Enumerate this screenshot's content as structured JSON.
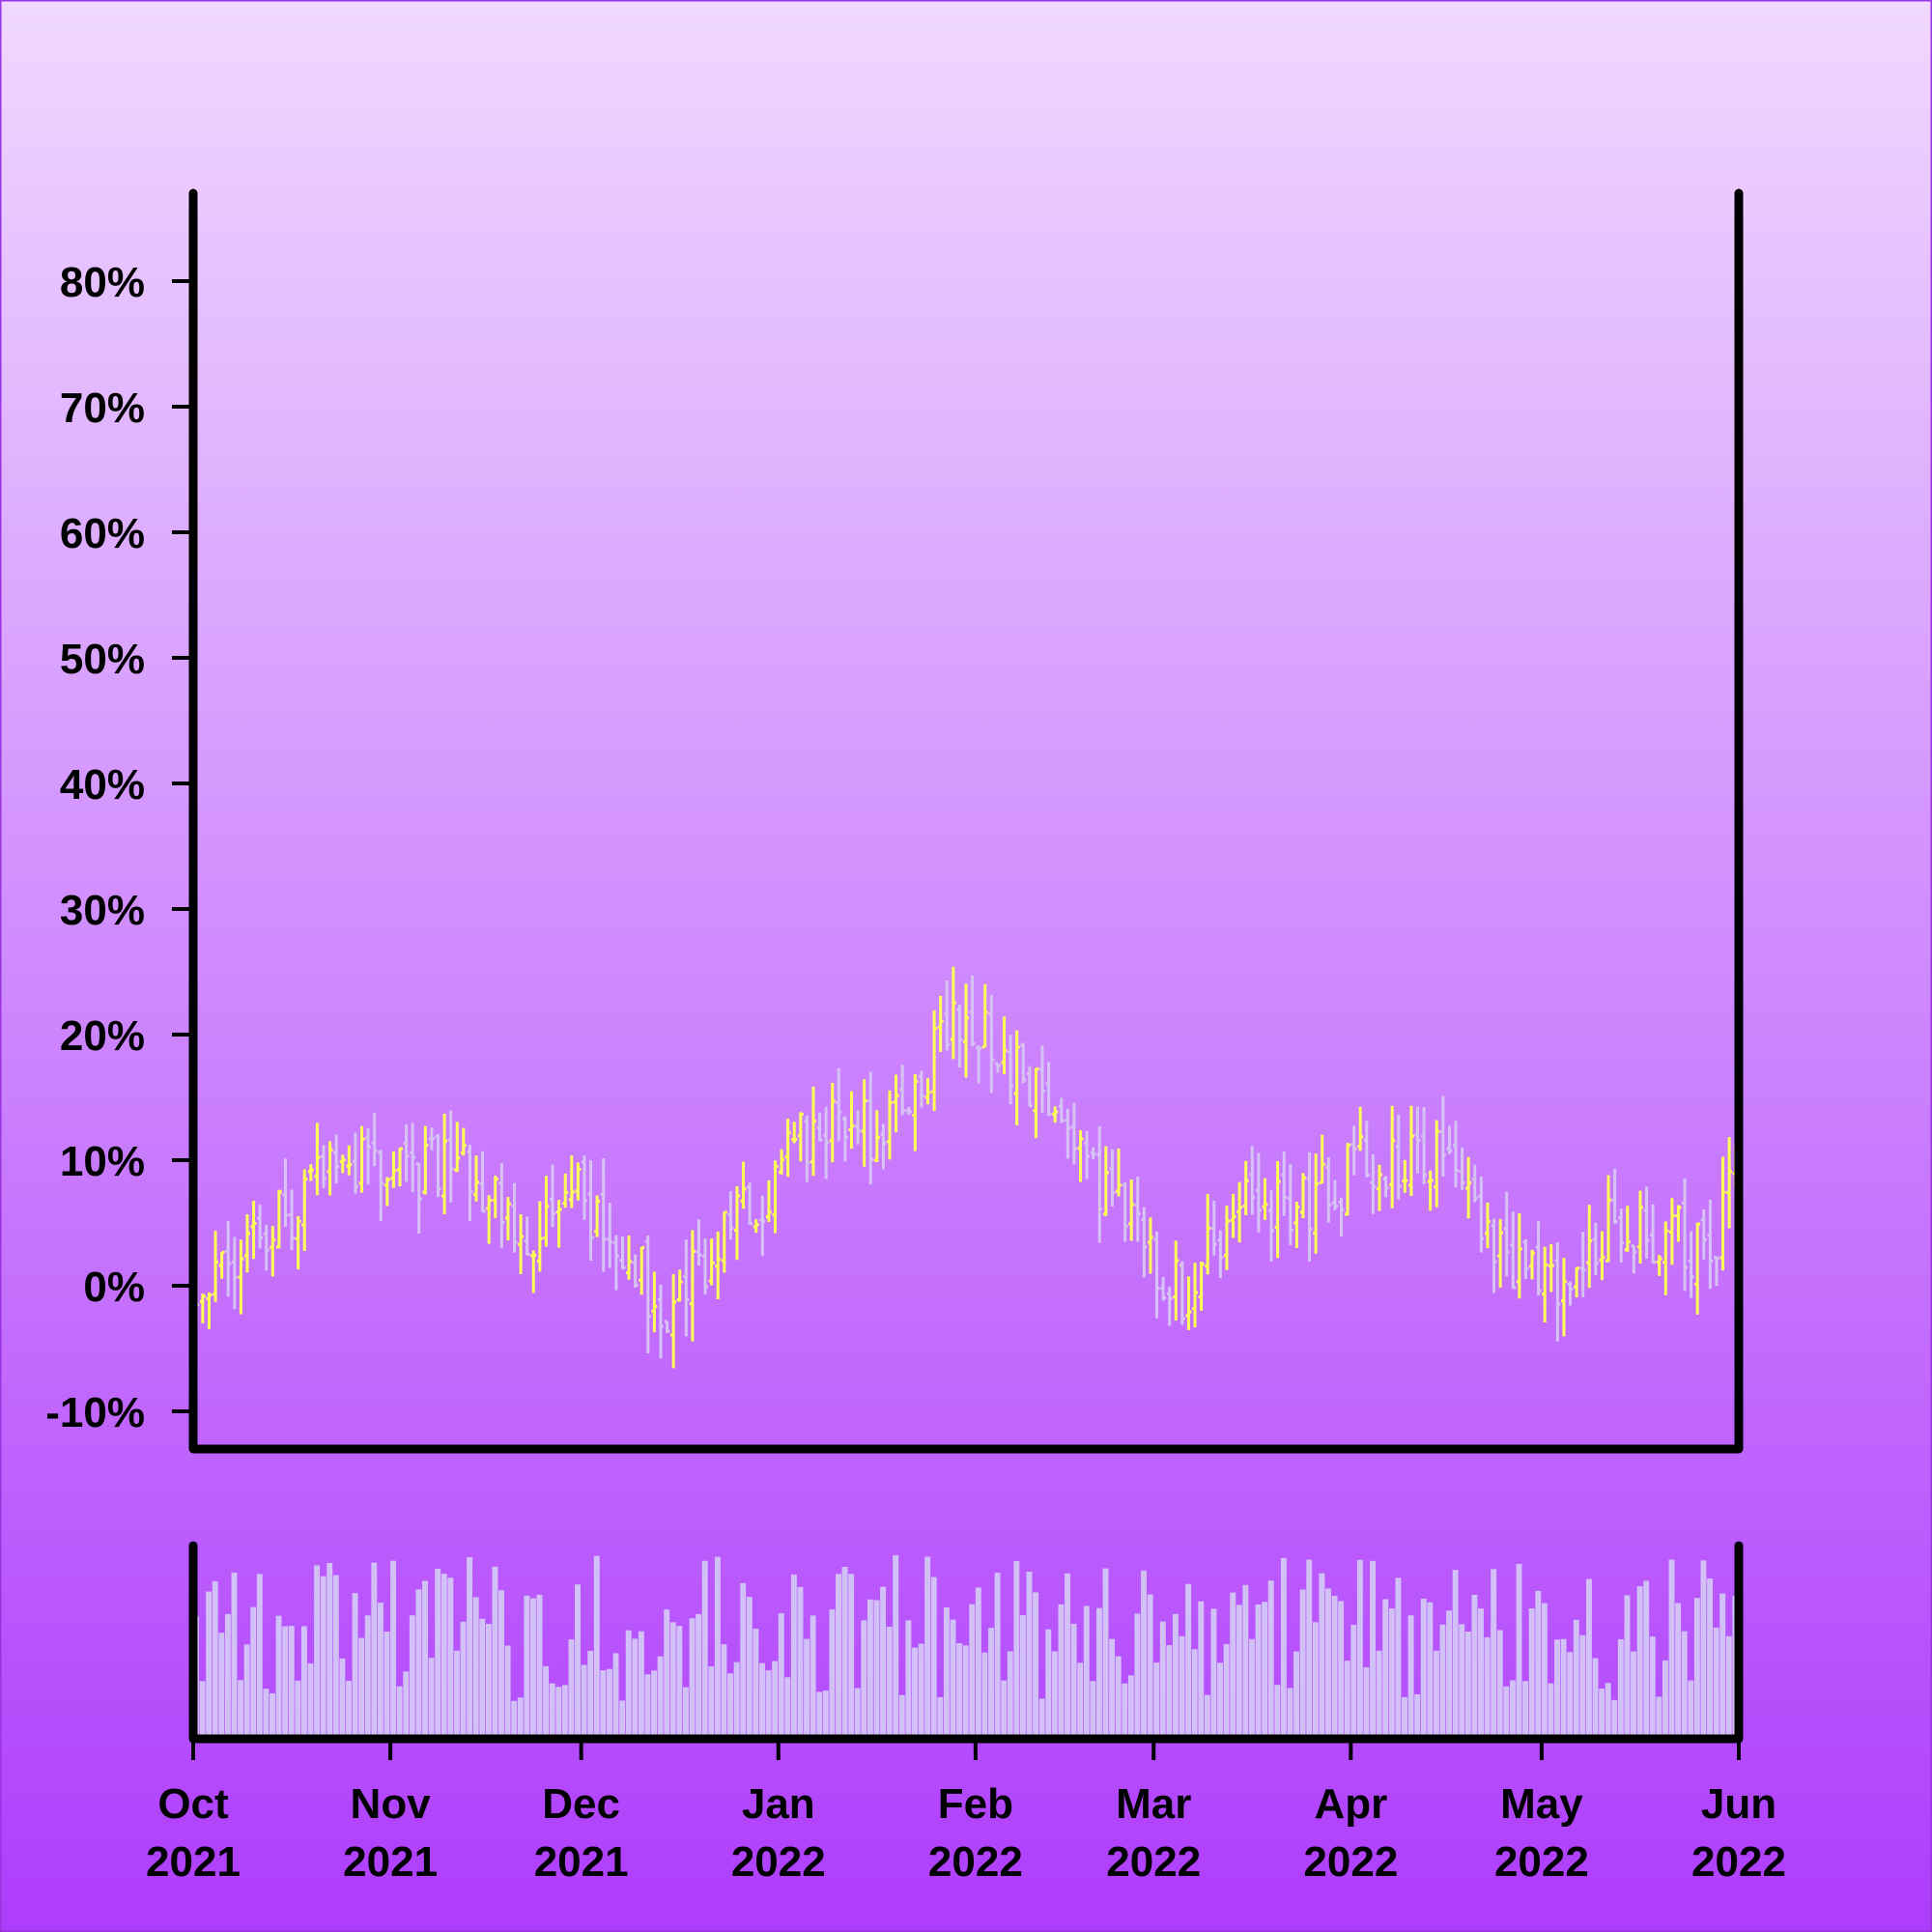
{
  "chart_data": {
    "type": "ohlc",
    "title": "",
    "xlabel": "",
    "ylabel": "",
    "ylim": [
      -13,
      87
    ],
    "xlim": [
      "2021-10-01",
      "2022-06-01"
    ],
    "y_ticks": [
      {
        "value": -10,
        "label": "-10%"
      },
      {
        "value": 0,
        "label": "0%"
      },
      {
        "value": 10,
        "label": "10%"
      },
      {
        "value": 20,
        "label": "20%"
      },
      {
        "value": 30,
        "label": "30%"
      },
      {
        "value": 40,
        "label": "40%"
      },
      {
        "value": 50,
        "label": "50%"
      },
      {
        "value": 60,
        "label": "60%"
      },
      {
        "value": 70,
        "label": "70%"
      },
      {
        "value": 80,
        "label": "80%"
      }
    ],
    "x_ticks": [
      {
        "date": "2021-10-01",
        "month": "Oct",
        "year": "2021"
      },
      {
        "date": "2021-11-01",
        "month": "Nov",
        "year": "2021"
      },
      {
        "date": "2021-12-01",
        "month": "Dec",
        "year": "2021"
      },
      {
        "date": "2022-01-01",
        "month": "Jan",
        "year": "2022"
      },
      {
        "date": "2022-02-01",
        "month": "Feb",
        "year": "2022"
      },
      {
        "date": "2022-03-01",
        "month": "Mar",
        "year": "2022"
      },
      {
        "date": "2022-04-01",
        "month": "Apr",
        "year": "2022"
      },
      {
        "date": "2022-05-01",
        "month": "May",
        "year": "2022"
      },
      {
        "date": "2022-06-01",
        "month": "Jun",
        "year": "2022"
      }
    ],
    "grid": false,
    "legend": "none",
    "colors": {
      "up": "#ffff55",
      "down": "#d6c2f5",
      "volume": "#d1c1f7",
      "axes": "#000000",
      "background_top": "#f0d8ff",
      "background_bottom": "#ae3cfc"
    },
    "keypoints": [
      {
        "date": "2021-10-01",
        "close": 0
      },
      {
        "date": "2021-10-07",
        "close": 2
      },
      {
        "date": "2021-10-16",
        "close": 6
      },
      {
        "date": "2021-10-28",
        "close": 11
      },
      {
        "date": "2021-11-05",
        "close": 9
      },
      {
        "date": "2021-11-12",
        "close": 10
      },
      {
        "date": "2021-11-22",
        "close": 3
      },
      {
        "date": "2021-11-28",
        "close": 9
      },
      {
        "date": "2021-12-06",
        "close": 4
      },
      {
        "date": "2021-12-14",
        "close": -2
      },
      {
        "date": "2021-12-26",
        "close": 5
      },
      {
        "date": "2022-01-08",
        "close": 14
      },
      {
        "date": "2022-01-18",
        "close": 12
      },
      {
        "date": "2022-01-30",
        "close": 22
      },
      {
        "date": "2022-02-08",
        "close": 17
      },
      {
        "date": "2022-02-18",
        "close": 10
      },
      {
        "date": "2022-02-26",
        "close": 4
      },
      {
        "date": "2022-03-06",
        "close": -1
      },
      {
        "date": "2022-03-14",
        "close": 7
      },
      {
        "date": "2022-03-24",
        "close": 6
      },
      {
        "date": "2022-04-04",
        "close": 10
      },
      {
        "date": "2022-04-16",
        "close": 11
      },
      {
        "date": "2022-04-26",
        "close": 2
      },
      {
        "date": "2022-05-03",
        "close": -1
      },
      {
        "date": "2022-05-12",
        "close": 5
      },
      {
        "date": "2022-05-22",
        "close": 4
      },
      {
        "date": "2022-05-28",
        "close": 2
      },
      {
        "date": "2022-06-01",
        "close": 11
      }
    ]
  }
}
